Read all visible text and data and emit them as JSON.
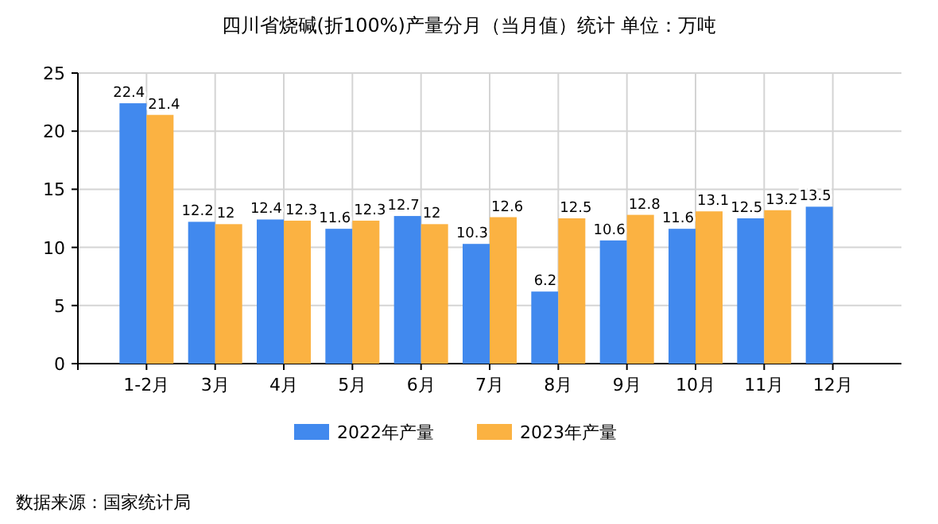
{
  "chart_data": {
    "type": "bar",
    "title": "四川省烧碱(折100%)产量分月（当月值）统计 单位：万吨",
    "categories": [
      "1-2月",
      "3月",
      "4月",
      "5月",
      "6月",
      "7月",
      "8月",
      "9月",
      "10月",
      "11月",
      "12月"
    ],
    "series": [
      {
        "name": "2022年产量",
        "color": "#4189ee",
        "values": [
          22.4,
          12.2,
          12.4,
          11.6,
          12.7,
          10.3,
          6.2,
          10.6,
          11.6,
          12.5,
          13.5
        ]
      },
      {
        "name": "2023年产量",
        "color": "#fbb242",
        "values": [
          21.4,
          12,
          12.3,
          12.3,
          12,
          12.6,
          12.5,
          12.8,
          13.1,
          13.2,
          null
        ]
      }
    ],
    "ylim": [
      0,
      25
    ],
    "yticks": [
      0,
      5,
      10,
      15,
      20,
      25
    ],
    "grid": true,
    "legend": "bottom",
    "data_labels": true,
    "annotations": [
      "数据来源：国家统计局"
    ]
  }
}
